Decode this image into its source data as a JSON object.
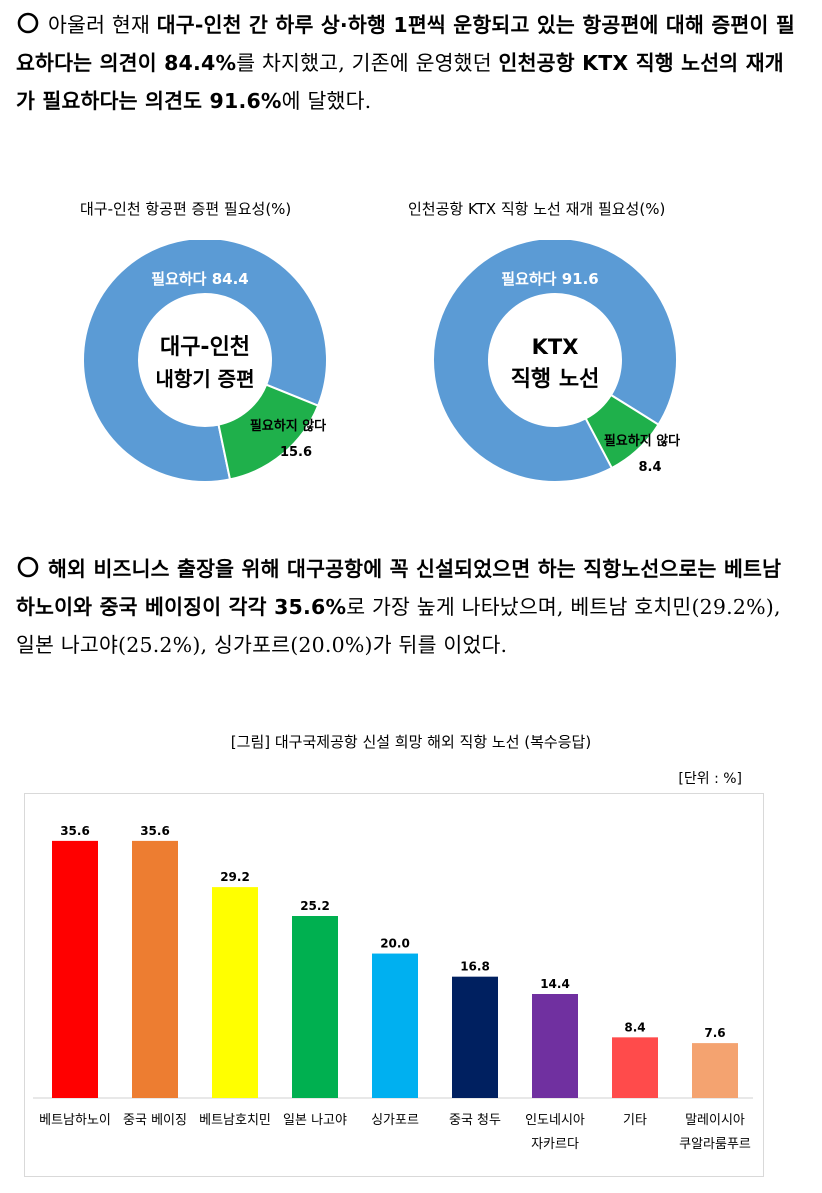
{
  "paragraph1": {
    "parts": [
      {
        "t": "아울러 현재 ",
        "b": false
      },
      {
        "t": "대구-인천 간 하루 상·하행 1편씩 운항되고 있는 항공편에 대해 증편이 필요하다는 의견이 84.4%",
        "b": true
      },
      {
        "t": "를 차지했고, 기존에 운영했던 ",
        "b": false
      },
      {
        "t": "인천공항 KTX 직행 노선의 재개가 필요하다는 의견도 91.6%",
        "b": true
      },
      {
        "t": "에 달했다.",
        "b": false
      }
    ]
  },
  "donut1": {
    "title": "대구-인천 항공편 증편 필요성(%)",
    "center_line1": "대구-인천",
    "center_line2": "내항기 증편",
    "yes_label": "필요하다 84.4",
    "no_label": "필요하지 않다",
    "no_value_label": "15.6",
    "yes_value": 84.4,
    "no_value": 15.6
  },
  "donut2": {
    "title": "인천공항 KTX 직항 노선 재개 필요성(%)",
    "center_line1": "KTX",
    "center_line2": "직행 노선",
    "yes_label": "필요하다 91.6",
    "no_label": "필요하지 않다",
    "no_value_label": "8.4",
    "yes_value": 91.6,
    "no_value": 8.4
  },
  "paragraph2": {
    "parts": [
      {
        "t": "해외 비즈니스 출장을 위해 대구공항에 꼭 신설되었으면 하는 직항노선으로는 베트남 하노이와 중국 베이징이 각각 35.6%",
        "b": true
      },
      {
        "t": "로 가장 높게 나타났으며, 베트남 호치민(29.2%), 일본 나고야(25.2%), 싱가포르(20.0%)가 뒤를 이었다.",
        "b": false
      }
    ]
  },
  "figure": {
    "caption": "[그림] 대구국제공항 신설 희망 해외 직항 노선 (복수응답)",
    "unit": "[단위 : %]"
  },
  "colors": {
    "donut_yes": "#5b9bd5",
    "donut_no": "#1fb04b"
  },
  "chart_data": {
    "type": "bar",
    "categories": [
      "베트남하노이",
      "중국 베이징",
      "베트남호치민",
      "일본 나고야",
      "싱가포르",
      "중국 청두",
      "인도네시아\n자카르다",
      "기타",
      "말레이시아\n쿠알라룸푸르"
    ],
    "values": [
      35.6,
      35.6,
      29.2,
      25.2,
      20.0,
      16.8,
      14.4,
      8.4,
      7.6
    ],
    "value_labels": [
      "35.6",
      "35.6",
      "29.2",
      "25.2",
      "20.0",
      "16.8",
      "14.4",
      "8.4",
      "7.6"
    ],
    "colors": [
      "#ff0000",
      "#ed7d31",
      "#ffff00",
      "#00b050",
      "#00b0f0",
      "#002060",
      "#7030a0",
      "#ff4b4b",
      "#f4a370"
    ],
    "ylim": [
      0,
      40
    ],
    "grid": false
  }
}
